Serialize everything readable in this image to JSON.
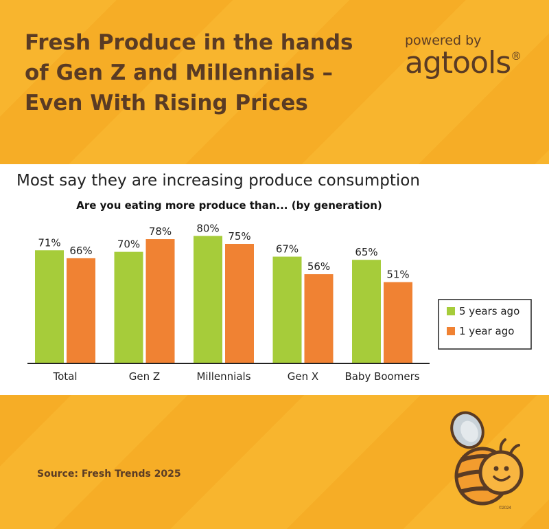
{
  "header": {
    "title": "Fresh Produce in the hands of Gen Z and Millennials – Even With Rising Prices"
  },
  "brand": {
    "powered_by": "powered by",
    "logo_text_a": "ag",
    "logo_text_b": "tools",
    "logo_mark": "®"
  },
  "footer": {
    "source": "Source: Fresh Trends 2025",
    "copyright": "©2024"
  },
  "colors": {
    "green": "#a6cc3a",
    "orange": "#f08233",
    "brown": "#5a3b24",
    "background": "#f7b42c"
  },
  "chart_data": {
    "type": "bar",
    "title": "Most say they are increasing produce consumption",
    "subtitle": "Are you eating more produce than... (by generation)",
    "categories": [
      "Total",
      "Gen Z",
      "Millennials",
      "Gen X",
      "Baby Boomers"
    ],
    "series": [
      {
        "name": "5 years ago",
        "color": "#a6cc3a",
        "values": [
          71,
          70,
          80,
          67,
          65
        ],
        "labels": [
          "71%",
          "70%",
          "80%",
          "67%",
          "65%"
        ]
      },
      {
        "name": "1 year ago",
        "color": "#f08233",
        "values": [
          66,
          78,
          75,
          56,
          51
        ],
        "labels": [
          "66%",
          "78%",
          "75%",
          "56%",
          "51%"
        ]
      }
    ],
    "ylim": [
      0,
      85
    ],
    "grid": false,
    "legend": "right"
  }
}
